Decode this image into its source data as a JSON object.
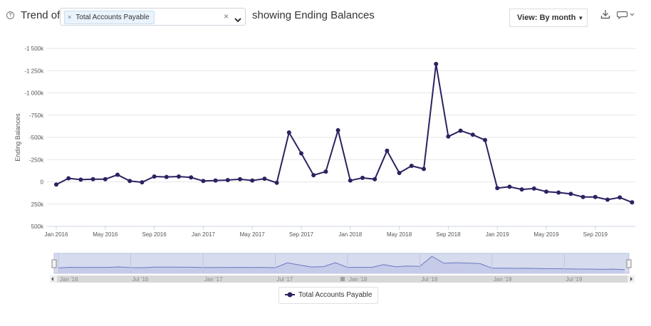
{
  "toolbar": {
    "title_prefix": "Trend of",
    "selected_item": "Total Accounts Payable",
    "chip_remove_glyph": "×",
    "clear_glyph": "×",
    "title_suffix": "showing Ending Balances",
    "view_label": "View: By month",
    "icons": [
      "help-icon",
      "remove-chip-icon",
      "clear-selection-icon",
      "chevron-down-icon",
      "download-icon",
      "comment-icon"
    ]
  },
  "legend": {
    "label": "Total Accounts Payable"
  },
  "colors": {
    "series": "#2e2161",
    "grid": "#e6e6e6",
    "navigator_fill": "#d6dbee",
    "navigator_line": "#6b78c2",
    "navigator_scrollbar": "#d8d8d8"
  },
  "chart_data": {
    "type": "line",
    "ylabel": "Ending Balances",
    "xlabel": "",
    "reversed_y": true,
    "ylim": [
      500,
      -1500
    ],
    "yticks": [
      -1500,
      -1250,
      -1000,
      -750,
      -500,
      -250,
      0,
      250,
      500
    ],
    "ytick_labels": [
      "-1 500k",
      "-1 250k",
      "-1 000k",
      "-750k",
      "-500k",
      "-250k",
      "0",
      "250k",
      "500k"
    ],
    "xtick_labels": [
      "Jan 2016",
      "May 2016",
      "Sep 2016",
      "Jan 2017",
      "May 2017",
      "Sep 2017",
      "Jan 2018",
      "May 2018",
      "Sep 2018",
      "Jan 2019",
      "May 2019",
      "Sep 2019"
    ],
    "xtick_months": [
      "2016-01",
      "2016-05",
      "2016-09",
      "2017-01",
      "2017-05",
      "2017-09",
      "2018-01",
      "2018-05",
      "2018-09",
      "2019-01",
      "2019-05",
      "2019-09"
    ],
    "grid": true,
    "legend_position": "bottom-center",
    "series": [
      {
        "name": "Total Accounts Payable",
        "x": [
          "2016-01",
          "2016-02",
          "2016-03",
          "2016-04",
          "2016-05",
          "2016-06",
          "2016-07",
          "2016-08",
          "2016-09",
          "2016-10",
          "2016-11",
          "2016-12",
          "2017-01",
          "2017-02",
          "2017-03",
          "2017-04",
          "2017-05",
          "2017-06",
          "2017-07",
          "2017-08",
          "2017-09",
          "2017-10",
          "2017-11",
          "2017-12",
          "2018-01",
          "2018-02",
          "2018-03",
          "2018-04",
          "2018-05",
          "2018-06",
          "2018-07",
          "2018-08",
          "2018-09",
          "2018-10",
          "2018-11",
          "2018-12",
          "2019-01",
          "2019-02",
          "2019-03",
          "2019-04",
          "2019-05",
          "2019-06",
          "2019-07",
          "2019-08",
          "2019-09",
          "2019-10",
          "2019-11",
          "2019-12"
        ],
        "values": [
          30,
          -40,
          -25,
          -30,
          -30,
          -80,
          -10,
          5,
          -60,
          -55,
          -60,
          -50,
          -10,
          -15,
          -20,
          -30,
          -15,
          -35,
          10,
          -555,
          -320,
          -75,
          -115,
          -580,
          -15,
          -45,
          -30,
          -350,
          -100,
          -180,
          -145,
          -1325,
          -510,
          -575,
          -530,
          -470,
          70,
          55,
          85,
          75,
          110,
          120,
          135,
          170,
          170,
          200,
          175,
          230
        ]
      }
    ],
    "navigator": {
      "labels": [
        "Jan '16",
        "Jul '16",
        "Jan '17",
        "Jul '17",
        "Jan '18",
        "Jul '18",
        "Jan '19",
        "Jul '19"
      ],
      "label_months": [
        "2016-01",
        "2016-07",
        "2017-01",
        "2017-07",
        "2018-01",
        "2018-07",
        "2019-01",
        "2019-07"
      ]
    }
  }
}
